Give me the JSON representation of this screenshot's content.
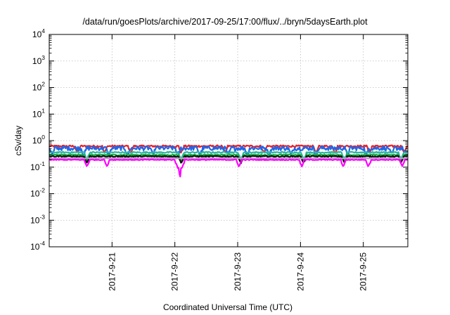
{
  "chart_data": {
    "type": "line",
    "title": "/data/run/goesPlots/archive/2017-09-25/17:00/flux/../bryn/5daysEarth.plot",
    "xlabel": "Coordinated Universal Time (UTC)",
    "ylabel": "cSv/day",
    "yscale": "log",
    "ylim": [
      0.0001,
      10000
    ],
    "y_ticks": [
      {
        "base": "10",
        "exp": "-4"
      },
      {
        "base": "10",
        "exp": "-3"
      },
      {
        "base": "10",
        "exp": "-2"
      },
      {
        "base": "10",
        "exp": "-1"
      },
      {
        "base": "10",
        "exp": "0"
      },
      {
        "base": "10",
        "exp": "1"
      },
      {
        "base": "10",
        "exp": "2"
      },
      {
        "base": "10",
        "exp": "3"
      },
      {
        "base": "10",
        "exp": "4"
      }
    ],
    "xlim": [
      "2017-09-20T00:00",
      "2017-09-25T17:00"
    ],
    "x_ticks": [
      "2017-9-21",
      "2017-9-22",
      "2017-9-23",
      "2017-9-24",
      "2017-9-25"
    ],
    "grid": true,
    "series": [
      {
        "color": "#e8202a",
        "level": 0.62,
        "noise": 0.08,
        "dips": [
          0.45,
          0.88,
          1.3,
          2.1,
          2.8,
          3.42,
          4.25,
          4.55,
          5.1,
          5.65
        ]
      },
      {
        "color": "#2166e8",
        "level": 0.52,
        "noise": 0.18,
        "dips": [
          0.05,
          0.55,
          0.95,
          1.25,
          1.65,
          2.05,
          2.4,
          2.85,
          3.15,
          3.5,
          3.85,
          4.25,
          4.75,
          5.05,
          5.45,
          5.68
        ]
      },
      {
        "color": "#2ab8a0",
        "level": 0.36,
        "noise": 0.06,
        "dips": [
          0.6,
          2.1,
          3.05,
          4.05,
          4.7,
          5.6
        ]
      },
      {
        "color": "#18b040",
        "level": 0.29,
        "noise": 0.05,
        "dips": [
          0.6,
          2.1,
          3.05,
          4.05,
          4.7,
          5.6
        ]
      },
      {
        "color": "#101010",
        "level": 0.255,
        "noise": 0.05,
        "dips": [
          0.6,
          2.1,
          3.05,
          4.05,
          4.7,
          5.6
        ]
      },
      {
        "color": "#b8a0c8",
        "level": 0.215,
        "noise": 0.03,
        "dips": []
      },
      {
        "color": "#ff00ff",
        "level": 0.19,
        "noise": 0.04,
        "dips": [
          0.6,
          0.92,
          2.04,
          2.08,
          2.12,
          3.02,
          4.02,
          4.68,
          5.08,
          5.62
        ],
        "deep_dip": {
          "day": 2.08,
          "value": 0.025
        }
      }
    ]
  }
}
